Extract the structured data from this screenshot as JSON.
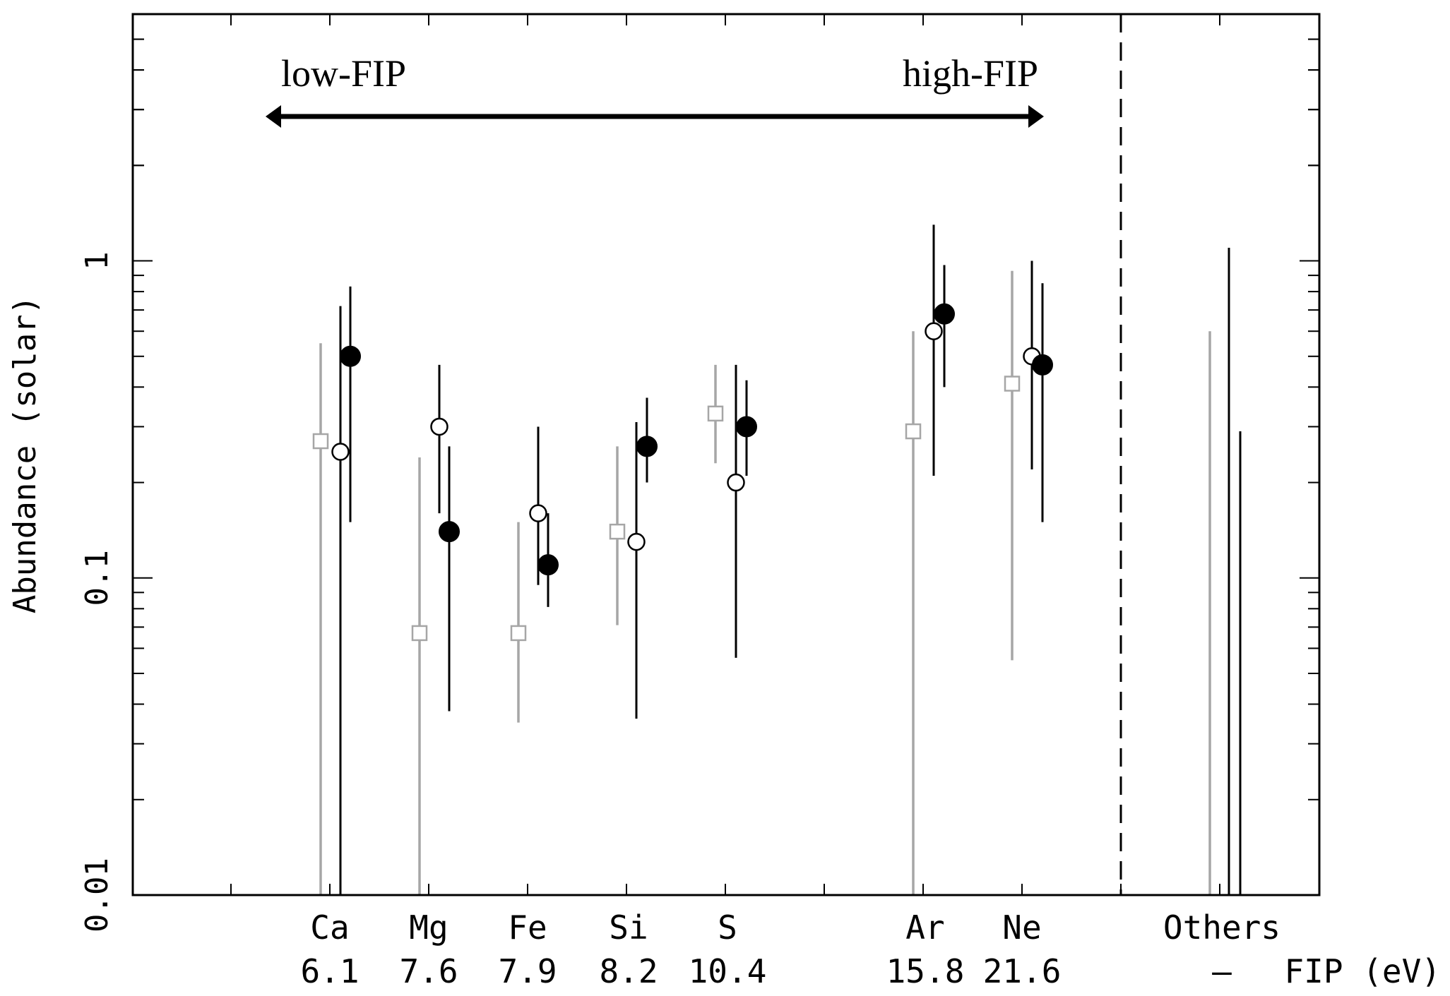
{
  "chart_data": {
    "type": "scatter",
    "yscale": "log",
    "ylim": [
      0.01,
      6
    ],
    "ylabel": "Abundance (solar)",
    "y_tick_labels": [
      "0.01",
      "0.1",
      "1"
    ],
    "y_tick_values": [
      0.01,
      0.1,
      1
    ],
    "fip_axis_label": "FIP (eV)",
    "categories": [
      {
        "element": "Ca",
        "fip": "6.1"
      },
      {
        "element": "Mg",
        "fip": "7.6"
      },
      {
        "element": "Fe",
        "fip": "7.9"
      },
      {
        "element": "Si",
        "fip": "8.2"
      },
      {
        "element": "S",
        "fip": "10.4"
      },
      {
        "element": "Ar",
        "fip": "15.8"
      },
      {
        "element": "Ne",
        "fip": "21.6"
      },
      {
        "element": "Others",
        "fip": "—"
      }
    ],
    "annotations": {
      "left": "low-FIP",
      "right": "high-FIP"
    },
    "series": [
      {
        "marker": "open-square",
        "color": "#a6a6a6",
        "points": [
          {
            "element": "Ca",
            "y": 0.27,
            "lo": 0.01,
            "hi": 0.55
          },
          {
            "element": "Mg",
            "y": 0.067,
            "lo": 0.01,
            "hi": 0.24
          },
          {
            "element": "Fe",
            "y": 0.067,
            "lo": 0.035,
            "hi": 0.15
          },
          {
            "element": "Si",
            "y": 0.14,
            "lo": 0.071,
            "hi": 0.26
          },
          {
            "element": "S",
            "y": 0.33,
            "lo": 0.23,
            "hi": 0.47
          },
          {
            "element": "Ar",
            "y": 0.29,
            "lo": 0.01,
            "hi": 0.6
          },
          {
            "element": "Ne",
            "y": 0.41,
            "lo": 0.055,
            "hi": 0.93
          },
          {
            "element": "Others",
            "y": null,
            "lo": 0.01,
            "hi": 0.6
          }
        ]
      },
      {
        "marker": "open-circle",
        "color": "#000000",
        "points": [
          {
            "element": "Ca",
            "y": 0.25,
            "lo": 0.01,
            "hi": 0.72
          },
          {
            "element": "Mg",
            "y": 0.3,
            "lo": 0.16,
            "hi": 0.47
          },
          {
            "element": "Fe",
            "y": 0.16,
            "lo": 0.095,
            "hi": 0.3
          },
          {
            "element": "Si",
            "y": 0.13,
            "lo": 0.036,
            "hi": 0.31
          },
          {
            "element": "S",
            "y": 0.2,
            "lo": 0.056,
            "hi": 0.47
          },
          {
            "element": "Ar",
            "y": 0.6,
            "lo": 0.21,
            "hi": 1.3
          },
          {
            "element": "Ne",
            "y": 0.5,
            "lo": 0.22,
            "hi": 1.0
          },
          {
            "element": "Others",
            "y": null,
            "lo": 0.01,
            "hi": 1.1
          }
        ]
      },
      {
        "marker": "filled-circle",
        "color": "#000000",
        "points": [
          {
            "element": "Ca",
            "y": 0.5,
            "lo": 0.15,
            "hi": 0.83
          },
          {
            "element": "Mg",
            "y": 0.14,
            "lo": 0.038,
            "hi": 0.26
          },
          {
            "element": "Fe",
            "y": 0.11,
            "lo": 0.081,
            "hi": 0.16
          },
          {
            "element": "Si",
            "y": 0.26,
            "lo": 0.2,
            "hi": 0.37
          },
          {
            "element": "S",
            "y": 0.3,
            "lo": 0.21,
            "hi": 0.42
          },
          {
            "element": "Ar",
            "y": 0.68,
            "lo": 0.4,
            "hi": 0.97
          },
          {
            "element": "Ne",
            "y": 0.47,
            "lo": 0.15,
            "hi": 0.85
          },
          {
            "element": "Others",
            "y": null,
            "lo": 0.01,
            "hi": 0.29
          }
        ]
      }
    ]
  }
}
